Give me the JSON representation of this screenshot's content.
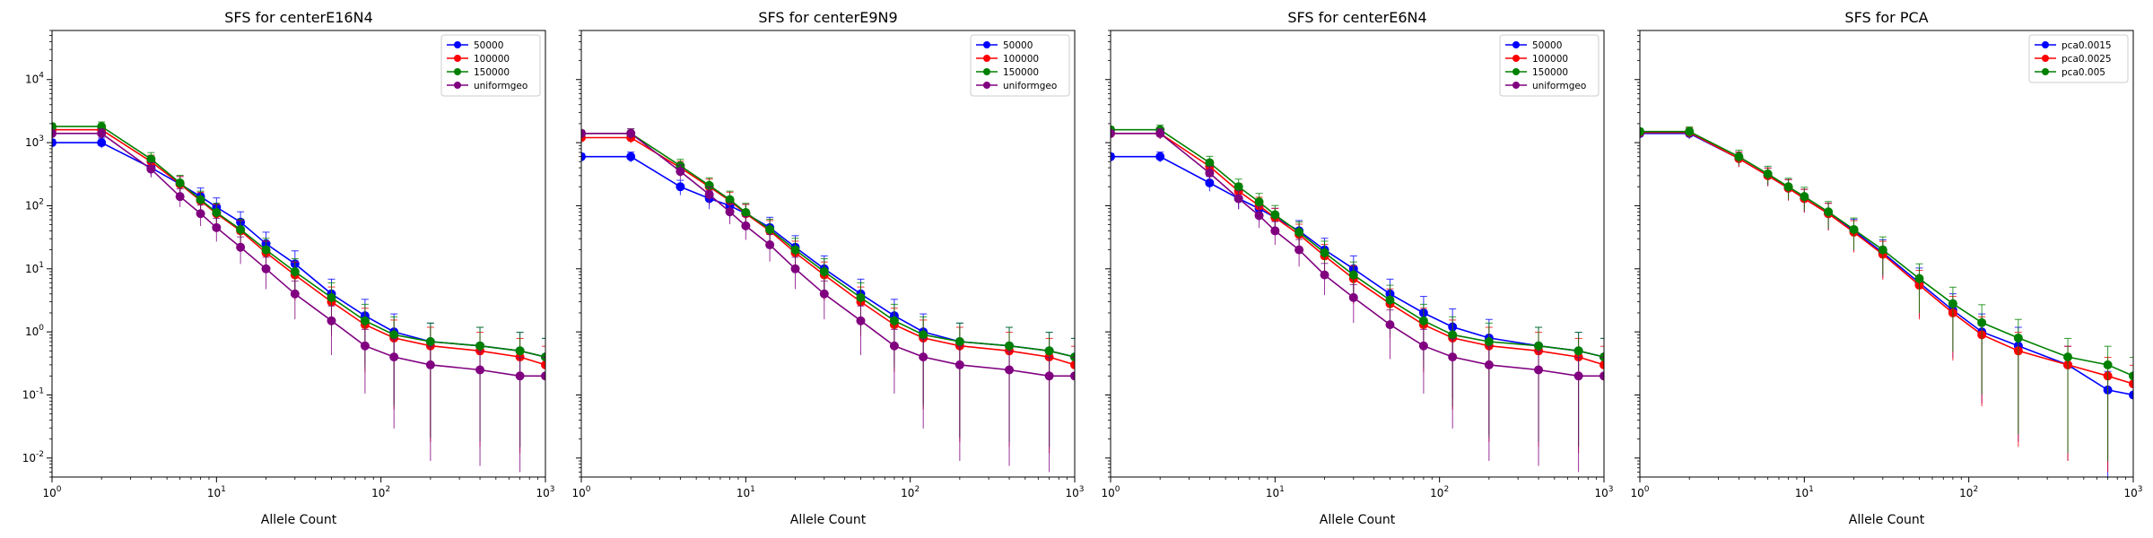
{
  "colors": {
    "50000": "#0000ff",
    "100000": "#ff0000",
    "150000": "#008000",
    "uniformgeo": "#800080",
    "pca0.0015": "#0000ff",
    "pca0.0025": "#ff0000",
    "pca0.005": "#008000"
  },
  "chart_data": [
    {
      "type": "line",
      "title": "SFS for centerE16N4",
      "xlabel": "Allele Count",
      "ylabel": "",
      "xscale": "log",
      "yscale": "log",
      "xlim": [
        1,
        1000
      ],
      "ylim": [
        0.005,
        60000
      ],
      "xticks": [
        "10^0",
        "10^1",
        "10^2",
        "10^3"
      ],
      "yticks": [
        "10^-2",
        "10^-1",
        "10^0",
        "10^1",
        "10^2",
        "10^3",
        "10^4"
      ],
      "legend": "top-right",
      "grid": false,
      "series": [
        {
          "name": "50000",
          "x": [
            1,
            2,
            4,
            6,
            8,
            10,
            14,
            20,
            30,
            50,
            80,
            120,
            200,
            400,
            700,
            1000
          ],
          "y": [
            1000,
            1000,
            400,
            220,
            140,
            95,
            55,
            25,
            12,
            4,
            1.8,
            1.0,
            0.7,
            0.6,
            0.5,
            0.4
          ]
        },
        {
          "name": "100000",
          "x": [
            1,
            2,
            4,
            6,
            8,
            10,
            14,
            20,
            30,
            50,
            80,
            120,
            200,
            400,
            700,
            1000
          ],
          "y": [
            1600,
            1600,
            500,
            220,
            120,
            75,
            40,
            18,
            8,
            3,
            1.3,
            0.8,
            0.6,
            0.5,
            0.4,
            0.3
          ]
        },
        {
          "name": "150000",
          "x": [
            1,
            2,
            4,
            6,
            8,
            10,
            14,
            20,
            30,
            50,
            80,
            120,
            200,
            400,
            700,
            1000
          ],
          "y": [
            1800,
            1800,
            550,
            230,
            125,
            78,
            42,
            20,
            9,
            3.5,
            1.5,
            0.9,
            0.7,
            0.6,
            0.5,
            0.4
          ]
        },
        {
          "name": "uniformgeo",
          "x": [
            1,
            2,
            4,
            6,
            8,
            10,
            14,
            20,
            30,
            50,
            80,
            120,
            200,
            400,
            700,
            1000
          ],
          "y": [
            1400,
            1400,
            380,
            140,
            75,
            45,
            22,
            10,
            4,
            1.5,
            0.6,
            0.4,
            0.3,
            0.25,
            0.2,
            0.2
          ]
        }
      ]
    },
    {
      "type": "line",
      "title": "SFS for centerE9N9",
      "xlabel": "Allele Count",
      "ylabel": "",
      "xscale": "log",
      "yscale": "log",
      "xlim": [
        1,
        1000
      ],
      "ylim": [
        0.005,
        60000
      ],
      "xticks": [
        "10^0",
        "10^1",
        "10^2",
        "10^3"
      ],
      "yticks": [],
      "legend": "top-right",
      "grid": false,
      "series": [
        {
          "name": "50000",
          "x": [
            1,
            2,
            4,
            6,
            8,
            10,
            14,
            20,
            30,
            50,
            80,
            120,
            200,
            400,
            700,
            1000
          ],
          "y": [
            600,
            600,
            200,
            130,
            100,
            75,
            45,
            22,
            10,
            4,
            1.8,
            1.0,
            0.7,
            0.6,
            0.5,
            0.4
          ]
        },
        {
          "name": "100000",
          "x": [
            1,
            2,
            4,
            6,
            8,
            10,
            14,
            20,
            30,
            50,
            80,
            120,
            200,
            400,
            700,
            1000
          ],
          "y": [
            1200,
            1200,
            400,
            200,
            120,
            75,
            40,
            18,
            8,
            3,
            1.3,
            0.8,
            0.6,
            0.5,
            0.4,
            0.3
          ]
        },
        {
          "name": "150000",
          "x": [
            1,
            2,
            4,
            6,
            8,
            10,
            14,
            20,
            30,
            50,
            80,
            120,
            200,
            400,
            700,
            1000
          ],
          "y": [
            1400,
            1400,
            430,
            210,
            125,
            78,
            42,
            20,
            9,
            3.5,
            1.5,
            0.9,
            0.7,
            0.6,
            0.5,
            0.4
          ]
        },
        {
          "name": "uniformgeo",
          "x": [
            1,
            2,
            4,
            6,
            8,
            10,
            14,
            20,
            30,
            50,
            80,
            120,
            200,
            400,
            700,
            1000
          ],
          "y": [
            1400,
            1400,
            350,
            150,
            80,
            48,
            24,
            10,
            4,
            1.5,
            0.6,
            0.4,
            0.3,
            0.25,
            0.2,
            0.2
          ]
        }
      ]
    },
    {
      "type": "line",
      "title": "SFS for centerE6N4",
      "xlabel": "Allele Count",
      "ylabel": "",
      "xscale": "log",
      "yscale": "log",
      "xlim": [
        1,
        1000
      ],
      "ylim": [
        0.005,
        60000
      ],
      "xticks": [
        "10^0",
        "10^1",
        "10^2",
        "10^3"
      ],
      "yticks": [],
      "legend": "top-right",
      "grid": false,
      "series": [
        {
          "name": "50000",
          "x": [
            1,
            2,
            4,
            6,
            8,
            10,
            14,
            20,
            30,
            50,
            80,
            120,
            200,
            400,
            700,
            1000
          ],
          "y": [
            600,
            600,
            230,
            130,
            90,
            65,
            40,
            20,
            10,
            4,
            2.0,
            1.2,
            0.8,
            0.6,
            0.5,
            0.4
          ]
        },
        {
          "name": "100000",
          "x": [
            1,
            2,
            4,
            6,
            8,
            10,
            14,
            20,
            30,
            50,
            80,
            120,
            200,
            400,
            700,
            1000
          ],
          "y": [
            1400,
            1400,
            420,
            170,
            100,
            65,
            35,
            16,
            7,
            2.8,
            1.3,
            0.8,
            0.6,
            0.5,
            0.4,
            0.3
          ]
        },
        {
          "name": "150000",
          "x": [
            1,
            2,
            4,
            6,
            8,
            10,
            14,
            20,
            30,
            50,
            80,
            120,
            200,
            400,
            700,
            1000
          ],
          "y": [
            1600,
            1600,
            480,
            200,
            115,
            72,
            38,
            18,
            8,
            3.2,
            1.5,
            0.9,
            0.7,
            0.6,
            0.5,
            0.4
          ]
        },
        {
          "name": "uniformgeo",
          "x": [
            1,
            2,
            4,
            6,
            8,
            10,
            14,
            20,
            30,
            50,
            80,
            120,
            200,
            400,
            700,
            1000
          ],
          "y": [
            1400,
            1400,
            330,
            130,
            70,
            40,
            20,
            8,
            3.5,
            1.3,
            0.6,
            0.4,
            0.3,
            0.25,
            0.2,
            0.2
          ]
        }
      ]
    },
    {
      "type": "line",
      "title": "SFS for PCA",
      "xlabel": "Allele Count",
      "ylabel": "",
      "xscale": "log",
      "yscale": "log",
      "xlim": [
        1,
        1000
      ],
      "ylim": [
        0.005,
        60000
      ],
      "xticks": [
        "10^0",
        "10^1",
        "10^2",
        "10^3"
      ],
      "yticks": [],
      "legend": "top-right",
      "grid": false,
      "series": [
        {
          "name": "pca0.0015",
          "x": [
            1,
            2,
            4,
            6,
            8,
            10,
            14,
            20,
            30,
            50,
            80,
            120,
            200,
            400,
            700,
            1000
          ],
          "y": [
            1400,
            1400,
            560,
            300,
            190,
            130,
            75,
            40,
            18,
            6,
            2.2,
            1.0,
            0.6,
            0.3,
            0.12,
            0.1
          ]
        },
        {
          "name": "pca0.0025",
          "x": [
            1,
            2,
            4,
            6,
            8,
            10,
            14,
            20,
            30,
            50,
            80,
            120,
            200,
            400,
            700,
            1000
          ],
          "y": [
            1450,
            1450,
            560,
            300,
            190,
            130,
            75,
            38,
            17,
            5.5,
            2.0,
            0.9,
            0.5,
            0.3,
            0.2,
            0.15
          ]
        },
        {
          "name": "pca0.005",
          "x": [
            1,
            2,
            4,
            6,
            8,
            10,
            14,
            20,
            30,
            50,
            80,
            120,
            200,
            400,
            700,
            1000
          ],
          "y": [
            1500,
            1500,
            600,
            320,
            200,
            140,
            80,
            42,
            20,
            7,
            2.8,
            1.4,
            0.8,
            0.4,
            0.3,
            0.2
          ]
        }
      ]
    }
  ]
}
